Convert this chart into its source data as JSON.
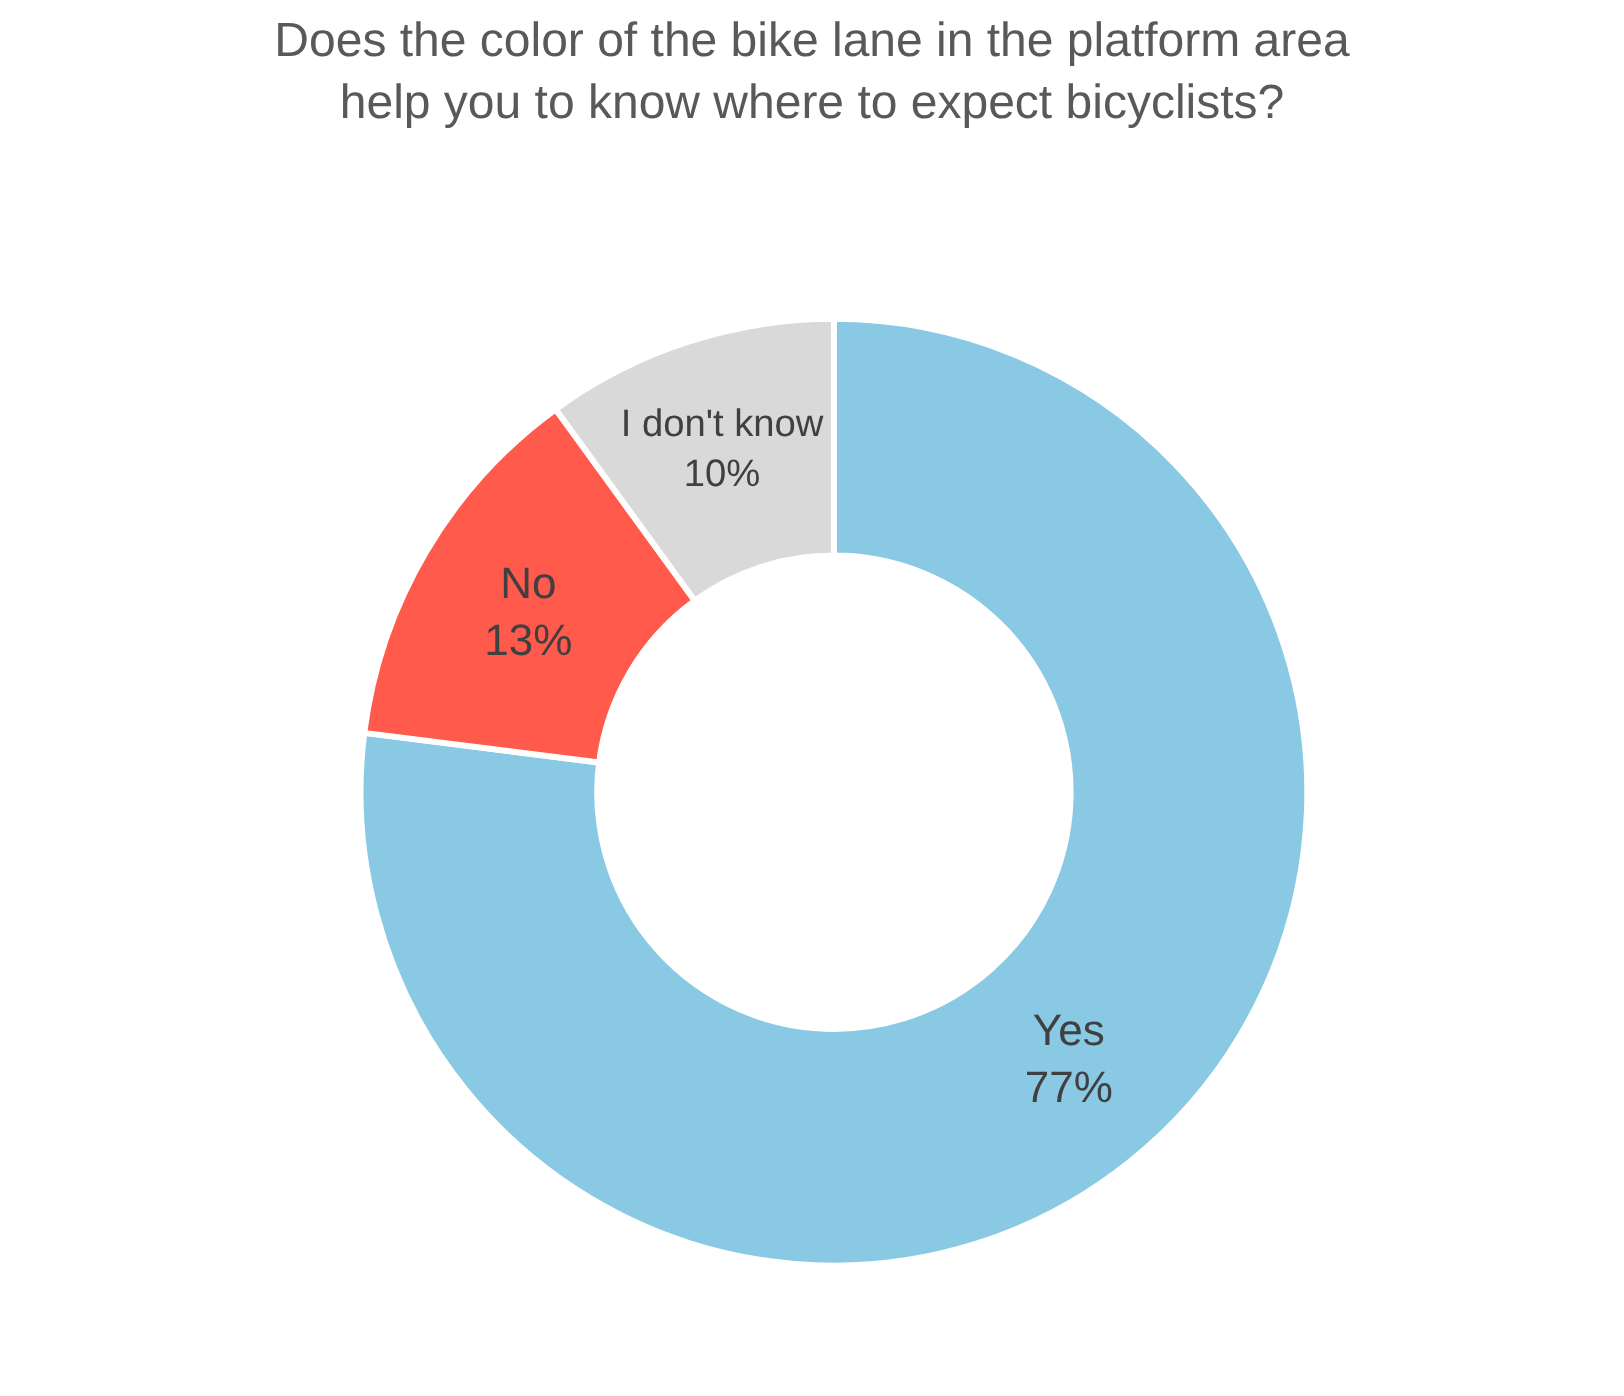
{
  "chart_data": {
    "type": "donut",
    "title": "Does the color of the bike lane in the platform area\nhelp you to know where to expect bicyclists?",
    "categories": [
      "Yes",
      "No",
      "I don't know"
    ],
    "values": [
      77,
      13,
      10
    ],
    "value_labels": [
      "77%",
      "13%",
      "10%"
    ],
    "colors": [
      "#89c9e4",
      "#ff5a4b",
      "#d9d9d9"
    ],
    "legend": false
  }
}
